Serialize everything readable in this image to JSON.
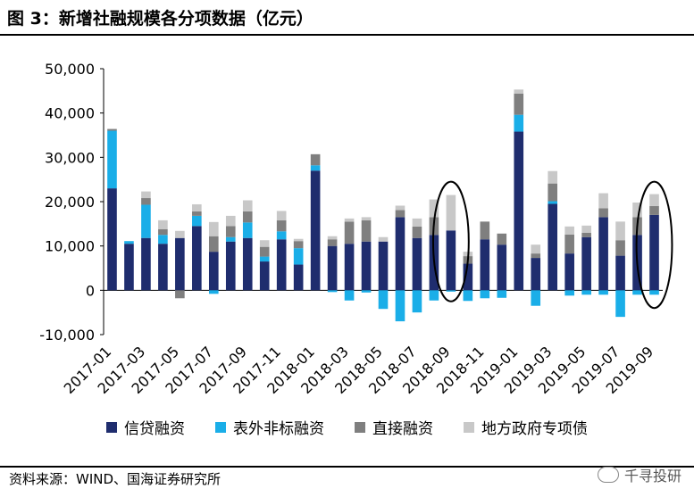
{
  "title": "图 3：新增社融规模各分项数据（亿元）",
  "source": "资料来源：WIND、国海证券研究所",
  "watermark": "千寻投研",
  "chart_data": {
    "type": "bar",
    "stacked": true,
    "title": "",
    "xlabel": "",
    "ylabel": "",
    "ylim": [
      -10000,
      50000
    ],
    "yticks": [
      -10000,
      0,
      10000,
      20000,
      30000,
      40000,
      50000
    ],
    "ytick_labels": [
      "-10,000",
      "0",
      "10,000",
      "20,000",
      "30,000",
      "40,000",
      "50,000"
    ],
    "legend_position": "bottom",
    "grid": false,
    "x_tick_labels": [
      "2017-01",
      "2017-03",
      "2017-05",
      "2017-07",
      "2017-09",
      "2017-11",
      "2018-01",
      "2018-03",
      "2018-05",
      "2018-07",
      "2018-09",
      "2018-11",
      "2019-01",
      "2019-03",
      "2019-05",
      "2019-07",
      "2019-09"
    ],
    "categories": [
      "2017-01",
      "2017-02",
      "2017-03",
      "2017-04",
      "2017-05",
      "2017-06",
      "2017-07",
      "2017-08",
      "2017-09",
      "2017-10",
      "2017-11",
      "2017-12",
      "2018-01",
      "2018-02",
      "2018-03",
      "2018-04",
      "2018-05",
      "2018-06",
      "2018-07",
      "2018-08",
      "2018-09",
      "2018-10",
      "2018-11",
      "2018-12",
      "2019-01",
      "2019-02",
      "2019-03",
      "2019-04",
      "2019-05",
      "2019-06",
      "2019-07",
      "2019-08",
      "2019-09"
    ],
    "series": [
      {
        "name": "信贷融资",
        "color": "#1f2d6e",
        "values": [
          23000,
          10500,
          11800,
          10500,
          11800,
          14500,
          8700,
          11000,
          11800,
          6500,
          11500,
          5800,
          27000,
          10000,
          10500,
          11000,
          11000,
          16500,
          11800,
          12500,
          13500,
          6000,
          11500,
          10300,
          35800,
          7300,
          19500,
          8300,
          12000,
          16500,
          7800,
          12500,
          17000
        ]
      },
      {
        "name": "表外非标融资",
        "color": "#1aaee8",
        "values": [
          13000,
          600,
          7500,
          2000,
          0,
          2300,
          -800,
          1000,
          3500,
          1100,
          1800,
          3700,
          1200,
          -400,
          -2300,
          -500,
          -4200,
          -7000,
          -5000,
          -2300,
          -300,
          -2400,
          -1800,
          -1700,
          3800,
          -3500,
          600,
          -1200,
          -1000,
          -1000,
          -6000,
          -1000,
          -1000
        ]
      },
      {
        "name": "直接融资",
        "color": "#7f7f7f",
        "values": [
          400,
          0,
          1500,
          1300,
          -1800,
          1000,
          3500,
          2500,
          2500,
          2200,
          2500,
          1600,
          2500,
          1500,
          5000,
          4800,
          0,
          1600,
          2600,
          4000,
          0,
          1700,
          4000,
          2500,
          4800,
          1000,
          4000,
          4300,
          1000,
          2000,
          3500,
          4000,
          2000
        ]
      },
      {
        "name": "地方政府专项债",
        "color": "#c8c8c8",
        "values": [
          0,
          0,
          1500,
          2000,
          1600,
          1600,
          3200,
          2300,
          2500,
          1500,
          2100,
          500,
          0,
          700,
          700,
          700,
          1000,
          1000,
          1800,
          4000,
          8000,
          1000,
          0,
          0,
          900,
          2000,
          2800,
          1800,
          1600,
          3400,
          4200,
          3300,
          2700
        ]
      }
    ],
    "highlight_ellipses": [
      {
        "category": "2018-09",
        "y_range": [
          -2500,
          24500
        ]
      },
      {
        "category": "2019-09",
        "y_range": [
          -4000,
          24500
        ]
      }
    ]
  }
}
